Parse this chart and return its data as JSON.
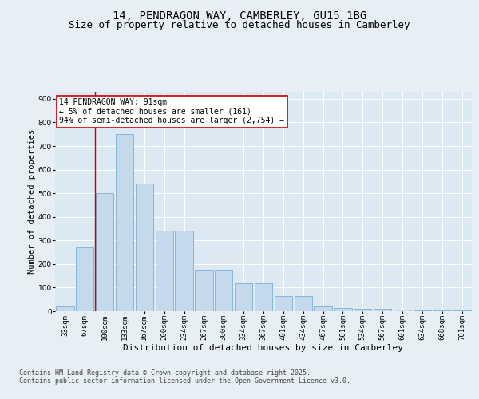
{
  "title_line1": "14, PENDRAGON WAY, CAMBERLEY, GU15 1BG",
  "title_line2": "Size of property relative to detached houses in Camberley",
  "xlabel": "Distribution of detached houses by size in Camberley",
  "ylabel": "Number of detached properties",
  "categories": [
    "33sqm",
    "67sqm",
    "100sqm",
    "133sqm",
    "167sqm",
    "200sqm",
    "234sqm",
    "267sqm",
    "300sqm",
    "334sqm",
    "367sqm",
    "401sqm",
    "434sqm",
    "467sqm",
    "501sqm",
    "534sqm",
    "567sqm",
    "601sqm",
    "634sqm",
    "668sqm",
    "701sqm"
  ],
  "values": [
    20,
    270,
    500,
    750,
    540,
    340,
    340,
    175,
    175,
    120,
    120,
    65,
    65,
    20,
    15,
    10,
    10,
    8,
    5,
    5,
    5
  ],
  "bar_color": "#c5d9ec",
  "bar_edge_color": "#7aafd4",
  "vline_color": "#cc0000",
  "vline_x": 1.5,
  "annotation_text": "14 PENDRAGON WAY: 91sqm\n← 5% of detached houses are smaller (161)\n94% of semi-detached houses are larger (2,754) →",
  "annotation_box_color": "#ffffff",
  "annotation_box_edge": "#cc0000",
  "ylim": [
    0,
    930
  ],
  "yticks": [
    0,
    100,
    200,
    300,
    400,
    500,
    600,
    700,
    800,
    900
  ],
  "bg_color": "#e8eef5",
  "plot_bg_color": "#dce8f2",
  "grid_color": "#ffffff",
  "footer_line1": "Contains HM Land Registry data © Crown copyright and database right 2025.",
  "footer_line2": "Contains public sector information licensed under the Open Government Licence v3.0.",
  "title_fontsize": 10,
  "subtitle_fontsize": 9,
  "tick_fontsize": 6.5,
  "label_fontsize": 8,
  "annotation_fontsize": 7,
  "footer_fontsize": 6
}
